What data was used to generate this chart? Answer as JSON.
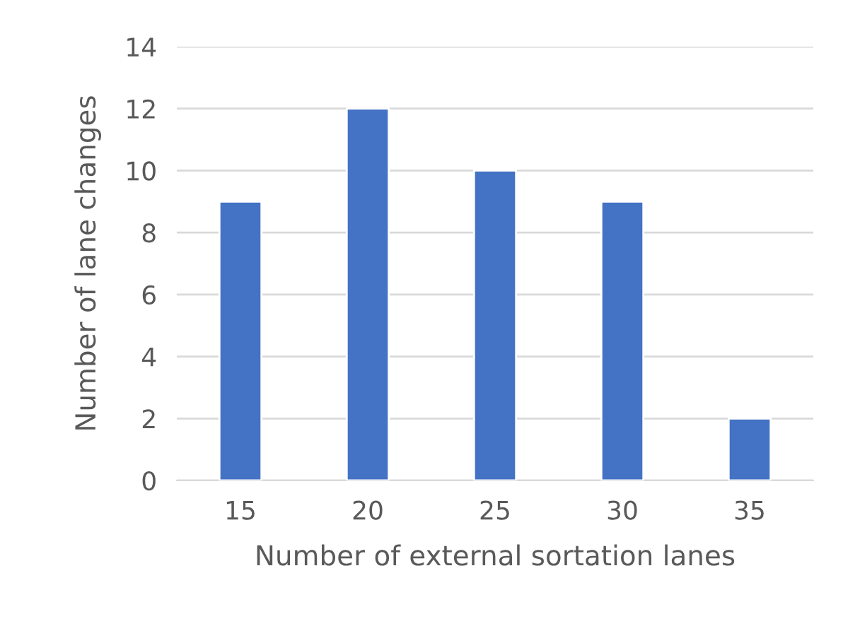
{
  "chart_data": {
    "type": "bar",
    "xlabel": "Number of external sortation lanes",
    "ylabel": "Number of lane changes",
    "categories": [
      "15",
      "20",
      "25",
      "30",
      "35"
    ],
    "values": [
      9,
      12,
      10,
      9,
      2
    ],
    "color": "#4472c4",
    "ylim": [
      0,
      14
    ],
    "yticks": [
      0,
      2,
      4,
      6,
      8,
      10,
      12,
      14
    ],
    "grid": "y"
  }
}
